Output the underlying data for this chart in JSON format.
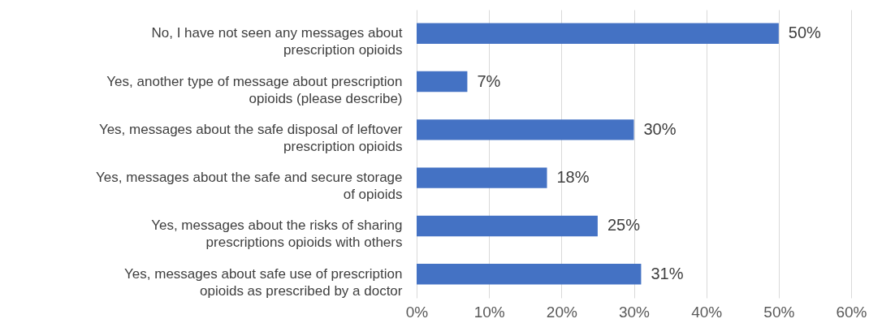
{
  "chart_data": {
    "type": "bar",
    "orientation": "horizontal",
    "categories": [
      "No, I have not seen any messages about prescription opioids",
      "Yes, another type of message about prescription opioids (please describe)",
      "Yes, messages about the safe disposal of leftover prescription opioids",
      "Yes, messages about the safe and secure storage of opioids",
      "Yes, messages about the risks of sharing prescriptions opioids with others",
      "Yes, messages about safe use of prescription opioids as prescribed by a doctor"
    ],
    "values": [
      50,
      7,
      30,
      18,
      25,
      31
    ],
    "value_labels": [
      "50%",
      "7%",
      "30%",
      "18%",
      "25%",
      "31%"
    ],
    "color": "#4472c4",
    "xlim": [
      0,
      60
    ],
    "xticks": [
      {
        "value": 0,
        "label": "0%"
      },
      {
        "value": 10,
        "label": "10%"
      },
      {
        "value": 20,
        "label": "20%"
      },
      {
        "value": 30,
        "label": "30%"
      },
      {
        "value": 40,
        "label": "40%"
      },
      {
        "value": 50,
        "label": "50%"
      },
      {
        "value": 60,
        "label": "60%"
      }
    ],
    "grid": "x"
  }
}
